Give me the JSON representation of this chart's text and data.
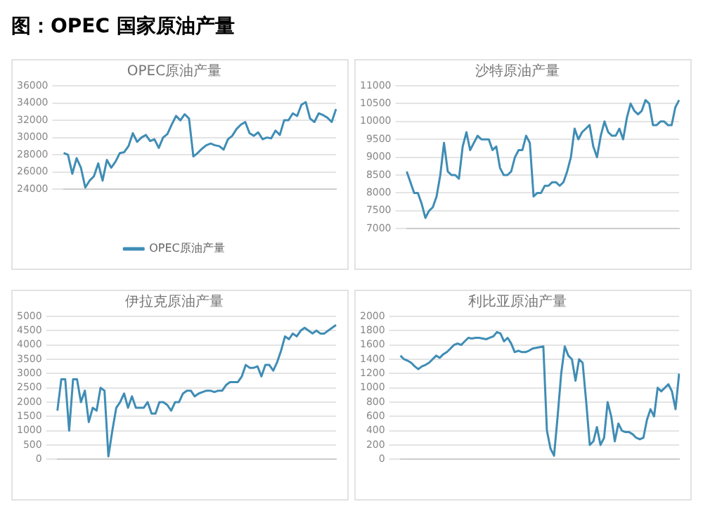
{
  "chart_data": [
    {
      "type": "other",
      "title": "图：OPEC 国家原油产量"
    },
    {
      "type": "line",
      "title": "OPEC原油产量",
      "legend": "bottom",
      "grid": "y",
      "marker": "none",
      "line_style": "solid",
      "ylim": [
        24000,
        36000
      ],
      "yticks": [
        24000,
        26000,
        28000,
        30000,
        32000,
        34000,
        36000
      ],
      "series": [
        {
          "name": "OPEC原油产量",
          "color": "#3f8db5",
          "values": [
            28200,
            28000,
            25800,
            27600,
            26500,
            24200,
            25000,
            25500,
            27000,
            25000,
            27400,
            26500,
            27200,
            28200,
            28300,
            29000,
            30500,
            29500,
            30000,
            30300,
            29600,
            29800,
            28800,
            30000,
            30400,
            31500,
            32500,
            32000,
            32700,
            32200,
            27800,
            28200,
            28700,
            29100,
            29300,
            29100,
            29000,
            28600,
            29800,
            30200,
            31000,
            31500,
            31800,
            30500,
            30200,
            30600,
            29800,
            30000,
            29900,
            30800,
            30300,
            32000,
            32000,
            32800,
            32500,
            33800,
            34100,
            32200,
            31800,
            32800,
            32600,
            32300,
            31800,
            33300
          ]
        }
      ]
    },
    {
      "type": "line",
      "title": "沙特原油产量",
      "grid": "y",
      "marker": "none",
      "line_style": "solid",
      "ylim": [
        7000,
        11000
      ],
      "yticks": [
        7000,
        7500,
        8000,
        8500,
        9000,
        9500,
        10000,
        10500,
        11000
      ],
      "series": [
        {
          "color": "#3f8db5",
          "values": [
            8600,
            8300,
            8000,
            8000,
            7700,
            7300,
            7500,
            7600,
            7900,
            8500,
            9400,
            8600,
            8500,
            8500,
            8400,
            9300,
            9700,
            9200,
            9400,
            9600,
            9500,
            9500,
            9500,
            9200,
            9300,
            8700,
            8500,
            8500,
            8600,
            9000,
            9200,
            9200,
            9600,
            9400,
            7900,
            8000,
            8000,
            8200,
            8200,
            8300,
            8300,
            8200,
            8300,
            8600,
            9000,
            9800,
            9500,
            9700,
            9800,
            9900,
            9300,
            9000,
            9600,
            10000,
            9700,
            9600,
            9600,
            9800,
            9500,
            10100,
            10500,
            10300,
            10200,
            10300,
            10600,
            10500,
            9900,
            9900,
            10000,
            10000,
            9900,
            9900,
            10400,
            10600
          ]
        }
      ]
    },
    {
      "type": "line",
      "title": "伊拉克原油产量",
      "grid": "y",
      "marker": "none",
      "line_style": "solid",
      "ylim": [
        0,
        5000
      ],
      "yticks": [
        0,
        500,
        1000,
        1500,
        2000,
        2500,
        3000,
        3500,
        4000,
        4500,
        5000
      ],
      "series": [
        {
          "color": "#3f8db5",
          "values": [
            1700,
            2800,
            2800,
            1000,
            2800,
            2800,
            2000,
            2400,
            1300,
            1800,
            1700,
            2500,
            2400,
            100,
            1000,
            1800,
            2000,
            2300,
            1800,
            2200,
            1800,
            1800,
            1800,
            2000,
            1600,
            1600,
            2000,
            2000,
            1900,
            1700,
            2000,
            2000,
            2300,
            2400,
            2400,
            2200,
            2300,
            2350,
            2400,
            2400,
            2350,
            2400,
            2400,
            2600,
            2700,
            2700,
            2700,
            2900,
            3300,
            3200,
            3200,
            3250,
            2900,
            3300,
            3300,
            3100,
            3400,
            3800,
            4300,
            4200,
            4400,
            4300,
            4500,
            4600,
            4500,
            4400,
            4500,
            4400,
            4400,
            4500,
            4600,
            4700
          ]
        }
      ]
    },
    {
      "type": "line",
      "title": "利比亚原油产量",
      "grid": "y",
      "marker": "none",
      "line_style": "solid",
      "ylim": [
        0,
        2000
      ],
      "yticks": [
        0,
        200,
        400,
        600,
        800,
        1000,
        1200,
        1400,
        1600,
        1800,
        2000
      ],
      "series": [
        {
          "color": "#3f8db5",
          "values": [
            1450,
            1400,
            1380,
            1350,
            1300,
            1260,
            1300,
            1320,
            1350,
            1400,
            1450,
            1420,
            1470,
            1500,
            1550,
            1600,
            1620,
            1600,
            1650,
            1700,
            1690,
            1700,
            1700,
            1690,
            1680,
            1700,
            1720,
            1780,
            1760,
            1650,
            1700,
            1620,
            1500,
            1520,
            1500,
            1500,
            1520,
            1550,
            1560,
            1570,
            1580,
            400,
            150,
            50,
            600,
            1200,
            1580,
            1450,
            1400,
            1100,
            1400,
            1350,
            800,
            200,
            250,
            450,
            200,
            300,
            800,
            600,
            250,
            500,
            400,
            380,
            380,
            350,
            300,
            280,
            300,
            550,
            700,
            600,
            1000,
            950,
            1000,
            1050,
            950,
            700,
            1200
          ]
        }
      ]
    }
  ]
}
